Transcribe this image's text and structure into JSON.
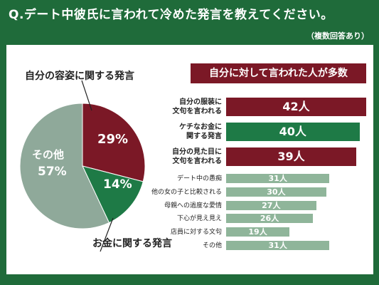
{
  "header": {
    "title": "Q.デート中彼氏に言われて冷めた発言を教えてください。",
    "subtitle": "（複数回答あり）"
  },
  "colors": {
    "background": "#1f6b3a",
    "maroon": "#7b1826",
    "green": "#1e7a46",
    "light_green": "#8fb59a",
    "pie_gray_green": "#8fa99a"
  },
  "chart_data": [
    {
      "type": "pie",
      "slices": [
        {
          "label": "自分の容姿に関する発言",
          "value": 29,
          "value_label": "29%"
        },
        {
          "label": "お金に関する発言",
          "value": 14,
          "value_label": "14%"
        },
        {
          "label": "その他",
          "value": 57,
          "value_label": "57%"
        }
      ]
    },
    {
      "type": "bar",
      "title": "自分に対して言われた人が多数",
      "categories": [
        "自分の服装に文句を言われる",
        "ケチなお金に関する発言",
        "自分の見た目に文句を言われる",
        "デート中の愚痴",
        "他の女の子と比較される",
        "母親への過度な愛情",
        "下心が見え見え",
        "店員に対する文句",
        "その他"
      ],
      "category_lines": [
        [
          "自分の服装に",
          "文句を言われる"
        ],
        [
          "ケチなお金に",
          "関する発言"
        ],
        [
          "自分の見た目に",
          "文句を言われる"
        ],
        [
          "デート中の愚痴"
        ],
        [
          "他の女の子と比較される"
        ],
        [
          "母親への過度な愛情"
        ],
        [
          "下心が見え見え"
        ],
        [
          "店員に対する文句"
        ],
        [
          "その他"
        ]
      ],
      "values": [
        42,
        40,
        39,
        31,
        30,
        27,
        26,
        19,
        31
      ],
      "value_labels": [
        "42人",
        "40人",
        "39人",
        "31人",
        "30人",
        "27人",
        "26人",
        "19人",
        "31人"
      ],
      "unit": "人"
    }
  ]
}
